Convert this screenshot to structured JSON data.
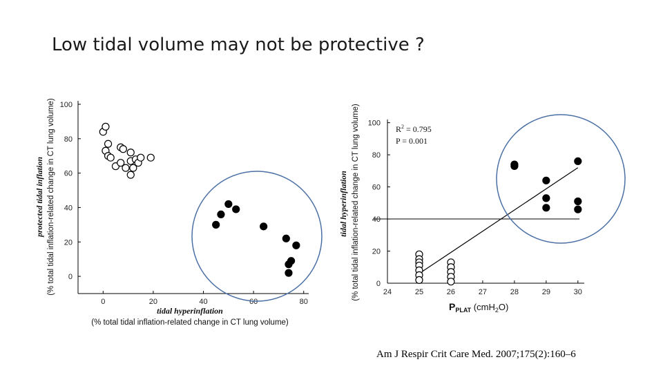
{
  "slide": {
    "title": "Low tidal volume may not be protective ?",
    "citation": "Am J Respir Crit Care Med. 2007;175(2):160–6"
  },
  "colors": {
    "highlight_circle": "#4a6fa5",
    "marker": "#000000"
  },
  "chart_data": [
    {
      "type": "scatter",
      "xlabel": "tidal hyperinflation",
      "xlabel_sub": "(% total tidal inflation-related change in CT lung volume)",
      "ylabel": "protected tidal inflation",
      "ylabel_sub": "(% total tidal inflation-related change in CT lung volume)",
      "xlim": [
        -10,
        82
      ],
      "ylim": [
        -10,
        102
      ],
      "xticks": [
        0,
        20,
        40,
        60,
        80
      ],
      "yticks": [
        0,
        20,
        40,
        60,
        80,
        100
      ],
      "series": [
        {
          "marker": "open",
          "points": [
            [
              0,
              84
            ],
            [
              1,
              87
            ],
            [
              2,
              77
            ],
            [
              1,
              73
            ],
            [
              2,
              70
            ],
            [
              3,
              69
            ],
            [
              5,
              64
            ],
            [
              7,
              75
            ],
            [
              8,
              74
            ],
            [
              7,
              66
            ],
            [
              9,
              63
            ],
            [
              11,
              72
            ],
            [
              11,
              67
            ],
            [
              11,
              59
            ],
            [
              12,
              63
            ],
            [
              13,
              68
            ],
            [
              14,
              66
            ],
            [
              15,
              69
            ],
            [
              19,
              69
            ]
          ]
        },
        {
          "marker": "filled",
          "points": [
            [
              45,
              30
            ],
            [
              47,
              36
            ],
            [
              50,
              42
            ],
            [
              53,
              39
            ],
            [
              64,
              29
            ],
            [
              73,
              22
            ],
            [
              77,
              18
            ],
            [
              75,
              9
            ],
            [
              74,
              7
            ],
            [
              74,
              2
            ]
          ]
        }
      ]
    },
    {
      "type": "scatter",
      "xlabel": "P",
      "xlabel_sub": "PLAT",
      "xlabel_unit": " (cmH",
      "xlabel_unit_sub": "2",
      "xlabel_unit_end": "O)",
      "ylabel": "tidal hyperinflation",
      "ylabel_sub": "(% total tidal inflation-related change in CT lung volume)",
      "r2_label": "R",
      "r2_sup": "2",
      "r2_value": " = 0.795",
      "p_label": "P = 0.001",
      "xlim": [
        24,
        30.2
      ],
      "ylim": [
        0,
        102
      ],
      "xticks": [
        24,
        25,
        26,
        27,
        28,
        29,
        30
      ],
      "yticks": [
        0,
        20,
        40,
        60,
        80,
        100
      ],
      "threshold_y": 40,
      "regression": [
        [
          25,
          6
        ],
        [
          30,
          72
        ]
      ],
      "series": [
        {
          "marker": "open",
          "points": [
            [
              25,
              18
            ],
            [
              25,
              15
            ],
            [
              25,
              13
            ],
            [
              25,
              11
            ],
            [
              25,
              8
            ],
            [
              25,
              5
            ],
            [
              25,
              2
            ],
            [
              26,
              13
            ],
            [
              26,
              10
            ],
            [
              26,
              7
            ],
            [
              26,
              4
            ],
            [
              26,
              1
            ]
          ]
        },
        {
          "marker": "filled",
          "points": [
            [
              28,
              74
            ],
            [
              28,
              73
            ],
            [
              29,
              64
            ],
            [
              29,
              53
            ],
            [
              29,
              47
            ],
            [
              30,
              76
            ],
            [
              30,
              51
            ],
            [
              30,
              46
            ]
          ]
        }
      ]
    }
  ]
}
